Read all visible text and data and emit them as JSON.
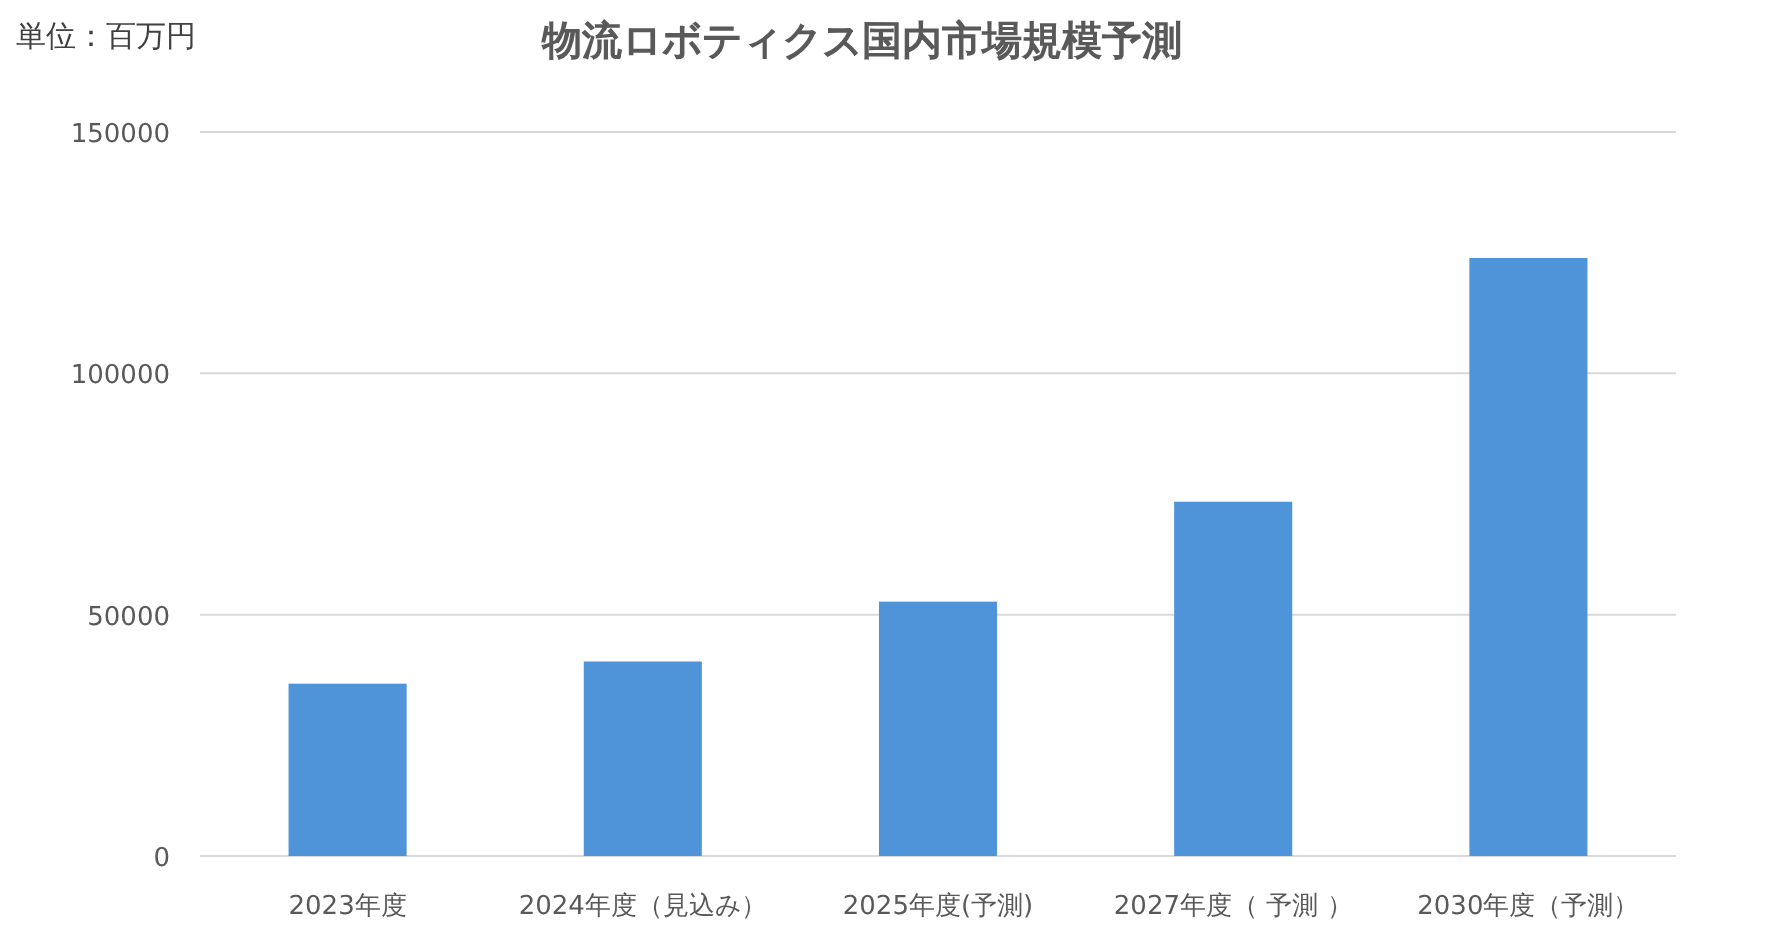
{
  "chart_data": {
    "type": "bar",
    "title": "物流ロボティクス国内市場規模予測",
    "annotations": [
      "単位：百万円"
    ],
    "categories": [
      "2023年度",
      "2024年度（見込み）",
      "2025年度(予測)",
      "2027年度（ 予測 ）",
      "2030年度（予測）"
    ],
    "values": [
      35700,
      40300,
      52700,
      73400,
      123900
    ],
    "color": "#4f94d9",
    "ylim": [
      0,
      150000
    ],
    "yticks": [
      0,
      50000,
      100000,
      150000
    ],
    "grid": "y"
  }
}
